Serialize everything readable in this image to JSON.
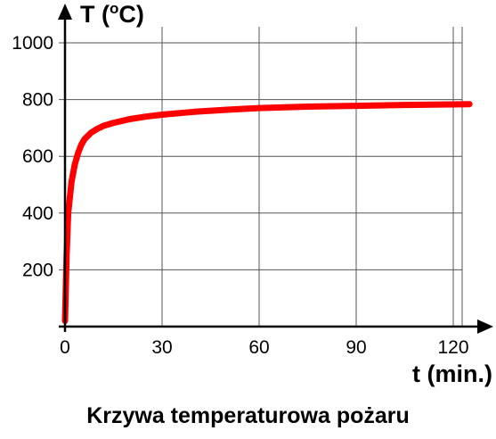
{
  "chart_data": {
    "type": "line",
    "caption": "Krzywa temperaturowa pożaru",
    "ylabel": "T (",
    "ylabel_sup": "o",
    "ylabel_end": "C)",
    "xlabel": "t (min.)",
    "xlim": [
      0,
      130
    ],
    "ylim": [
      0,
      1050
    ],
    "x_ticks": [
      {
        "value": 0,
        "label": "0"
      },
      {
        "value": 30,
        "label": "30"
      },
      {
        "value": 60,
        "label": "60"
      },
      {
        "value": 90,
        "label": "90"
      },
      {
        "value": 120,
        "label": "120"
      }
    ],
    "y_ticks": [
      {
        "value": 200,
        "label": "200"
      },
      {
        "value": 400,
        "label": "400"
      },
      {
        "value": 600,
        "label": "600"
      },
      {
        "value": 800,
        "label": "800"
      },
      {
        "value": 1000,
        "label": "1000"
      }
    ],
    "grid": true,
    "series": [
      {
        "color": "#ff0000",
        "x": [
          0,
          0.5,
          1,
          2,
          3,
          4,
          5,
          6,
          8,
          10,
          12,
          15,
          20,
          25,
          30,
          40,
          50,
          60,
          75,
          90,
          105,
          120,
          125
        ],
        "y": [
          20,
          250,
          400,
          510,
          570,
          610,
          640,
          660,
          683,
          697,
          708,
          718,
          731,
          740,
          747,
          757,
          764,
          770,
          775,
          778,
          781,
          783,
          784
        ]
      }
    ]
  }
}
